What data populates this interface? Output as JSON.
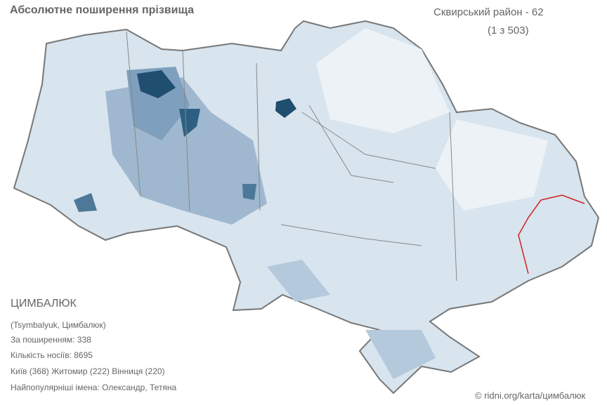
{
  "header": {
    "title": "Абсолютне поширення прізвища",
    "region": "Сквирський район - 62",
    "rank": "(1 з 503)"
  },
  "info": {
    "surname": "ЦИМБАЛЮК",
    "transliteration": "(Tsymbalyuk, Цимбалюк)",
    "popularity": "За поширенням: 338",
    "carriers": "Кількість носіїв:  8695",
    "cities": "Київ (368) Житомир (222) Вінниця (220)",
    "names": "Найпопулярніші імена: Олександр, Тетяна"
  },
  "footer": {
    "credit": "© ridni.org/karta/цимбалюк"
  }
}
